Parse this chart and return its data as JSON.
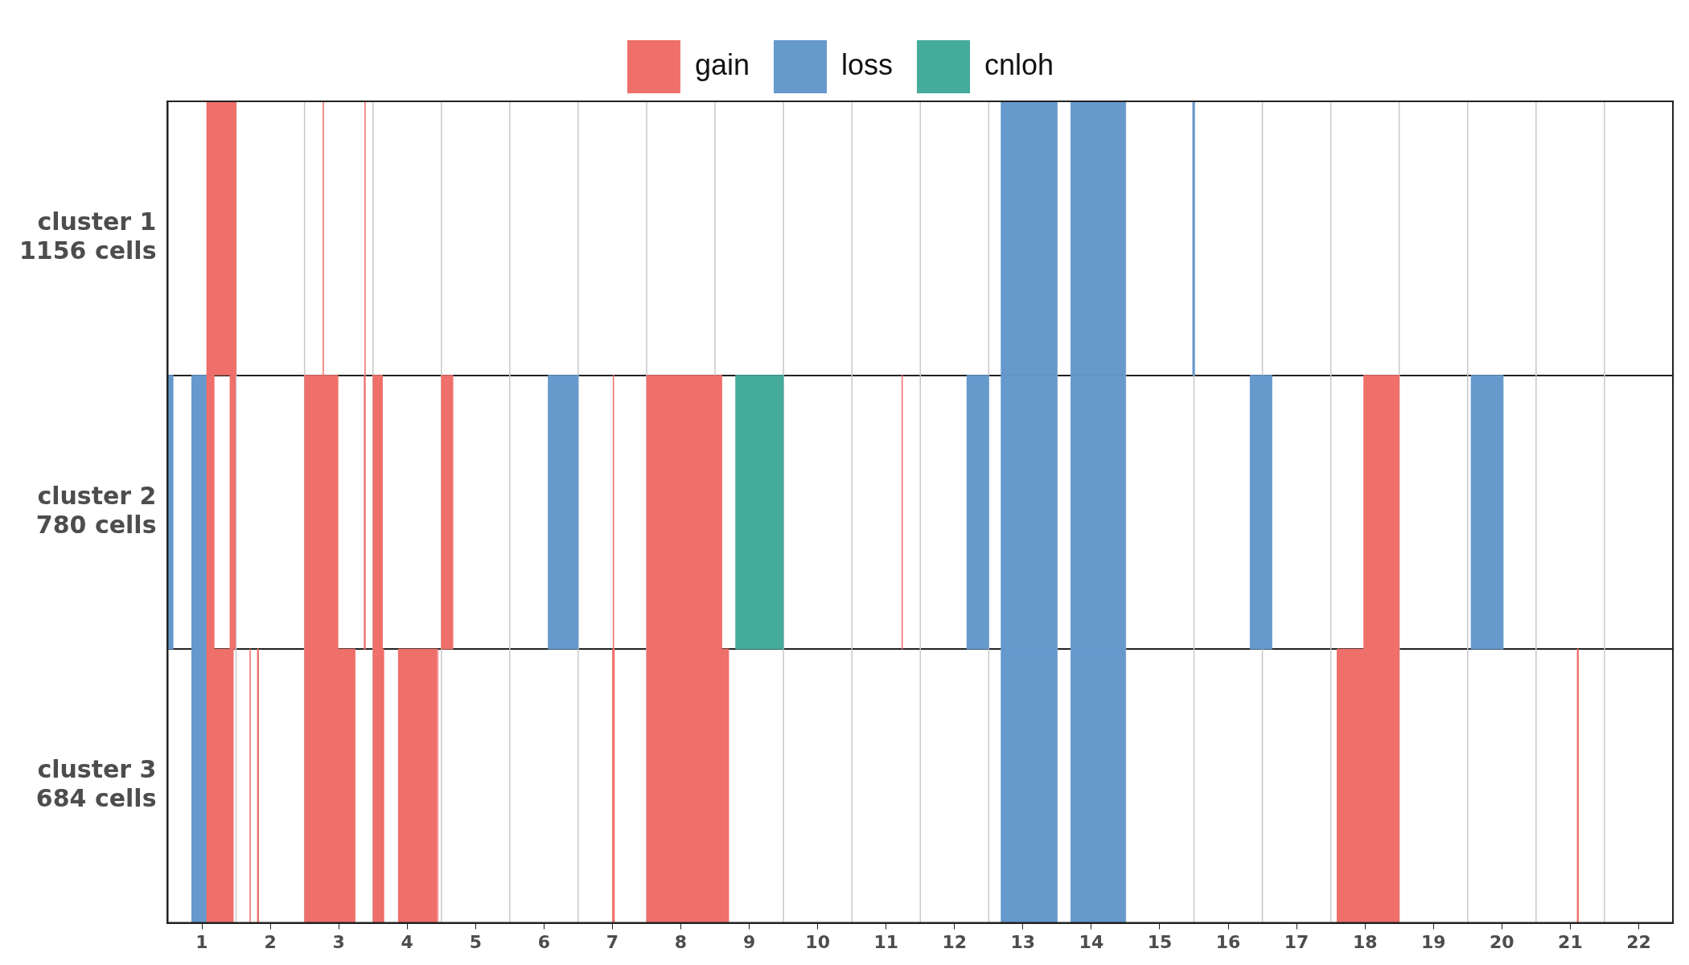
{
  "chart_data": {
    "type": "bar",
    "orientation": "horizontal",
    "legend": "top",
    "grid": "y",
    "categories": [
      "cluster 1\n1156 cells",
      "cluster 2\n780 cells",
      "cluster 3\n684 cells"
    ],
    "xlim": [
      0.5,
      22.5
    ],
    "xticks": [
      1,
      2,
      3,
      4,
      5,
      6,
      7,
      8,
      9,
      10,
      11,
      12,
      13,
      14,
      15,
      16,
      17,
      18,
      19,
      20,
      21,
      22
    ],
    "ref_lines": [
      {
        "axis": "x",
        "value": 1.5,
        "color": "#c8c8c8"
      },
      {
        "axis": "x",
        "value": 2.5,
        "color": "#c8c8c8"
      },
      {
        "axis": "x",
        "value": 3.5,
        "color": "#c8c8c8"
      },
      {
        "axis": "x",
        "value": 4.5,
        "color": "#c8c8c8"
      },
      {
        "axis": "x",
        "value": 5.5,
        "color": "#c8c8c8"
      },
      {
        "axis": "x",
        "value": 6.5,
        "color": "#c8c8c8"
      },
      {
        "axis": "x",
        "value": 7.5,
        "color": "#c8c8c8"
      },
      {
        "axis": "x",
        "value": 8.5,
        "color": "#c8c8c8"
      },
      {
        "axis": "x",
        "value": 9.5,
        "color": "#c8c8c8"
      },
      {
        "axis": "x",
        "value": 10.5,
        "color": "#c8c8c8"
      },
      {
        "axis": "x",
        "value": 11.5,
        "color": "#c8c8c8"
      },
      {
        "axis": "x",
        "value": 12.5,
        "color": "#c8c8c8"
      },
      {
        "axis": "x",
        "value": 13.5,
        "color": "#c8c8c8"
      },
      {
        "axis": "x",
        "value": 14.5,
        "color": "#c8c8c8"
      },
      {
        "axis": "x",
        "value": 15.5,
        "color": "#c8c8c8"
      },
      {
        "axis": "x",
        "value": 16.5,
        "color": "#c8c8c8"
      },
      {
        "axis": "x",
        "value": 17.5,
        "color": "#c8c8c8"
      },
      {
        "axis": "x",
        "value": 18.5,
        "color": "#c8c8c8"
      },
      {
        "axis": "x",
        "value": 19.5,
        "color": "#c8c8c8"
      },
      {
        "axis": "x",
        "value": 20.5,
        "color": "#c8c8c8"
      },
      {
        "axis": "x",
        "value": 21.5,
        "color": "#c8c8c8"
      }
    ],
    "series": [
      {
        "name": "gain",
        "color": "#ef6f6a",
        "base": [
          1.07,
          1.07,
          1.07
        ],
        "values": [
          0.43,
          0.11,
          0.39
        ]
      },
      {
        "color": "#ef6f6a",
        "base": [
          2.77,
          1.41,
          1.7
        ],
        "values": [
          0.01,
          0.08,
          0.01
        ]
      },
      {
        "color": "#ef6f6a",
        "base": [
          3.38,
          2.5,
          1.81
        ],
        "values": [
          0.01,
          0.49,
          0.02
        ]
      },
      {
        "color": "#ef6f6a",
        "base": [
          null,
          3.37,
          2.5
        ],
        "values": [
          null,
          0.02,
          0.74
        ]
      },
      {
        "color": "#ef6f6a",
        "base": [
          null,
          3.5,
          3.5
        ],
        "values": [
          null,
          0.14,
          0.16
        ]
      },
      {
        "color": "#ef6f6a",
        "base": [
          null,
          4.5,
          3.87
        ],
        "values": [
          null,
          0.17,
          0.56
        ]
      },
      {
        "color": "#ef6f6a",
        "base": [
          null,
          7.01,
          4.44
        ],
        "values": [
          null,
          0.01,
          0.01
        ]
      },
      {
        "color": "#ef6f6a",
        "base": [
          null,
          7.5,
          7.0
        ],
        "values": [
          null,
          1.1,
          0.03
        ]
      },
      {
        "color": "#ef6f6a",
        "base": [
          null,
          11.23,
          7.5
        ],
        "values": [
          null,
          0.01,
          1.2
        ]
      },
      {
        "color": "#ef6f6a",
        "base": [
          null,
          17.98,
          17.59
        ],
        "values": [
          null,
          0.52,
          0.91
        ]
      },
      {
        "color": "#ef6f6a",
        "base": [
          null,
          null,
          21.1
        ],
        "values": [
          null,
          null,
          0.02
        ]
      },
      {
        "name": "loss",
        "color": "#6699cc",
        "base": [
          12.68,
          12.68,
          12.68
        ],
        "values": [
          0.82,
          0.82,
          0.82
        ]
      },
      {
        "color": "#6699cc",
        "base": [
          13.7,
          13.7,
          13.7
        ],
        "values": [
          0.8,
          0.8,
          0.8
        ]
      },
      {
        "color": "#6699cc",
        "base": [
          15.48,
          0.5,
          0.85
        ],
        "values": [
          0.03,
          0.08,
          0.22
        ]
      },
      {
        "color": "#6699cc",
        "base": [
          null,
          0.85,
          null
        ],
        "values": [
          null,
          0.22,
          null
        ]
      },
      {
        "color": "#6699cc",
        "base": [
          null,
          6.06,
          null
        ],
        "values": [
          null,
          0.44,
          null
        ]
      },
      {
        "color": "#6699cc",
        "base": [
          null,
          12.18,
          null
        ],
        "values": [
          null,
          0.32,
          null
        ]
      },
      {
        "color": "#6699cc",
        "base": [
          null,
          16.32,
          null
        ],
        "values": [
          null,
          0.32,
          null
        ]
      },
      {
        "color": "#6699cc",
        "base": [
          null,
          19.55,
          null
        ],
        "values": [
          null,
          0.47,
          null
        ]
      },
      {
        "name": "cnloh",
        "color": "#45ab9b",
        "base": [
          null,
          8.8,
          null
        ],
        "values": [
          null,
          0.7,
          null
        ]
      }
    ]
  }
}
